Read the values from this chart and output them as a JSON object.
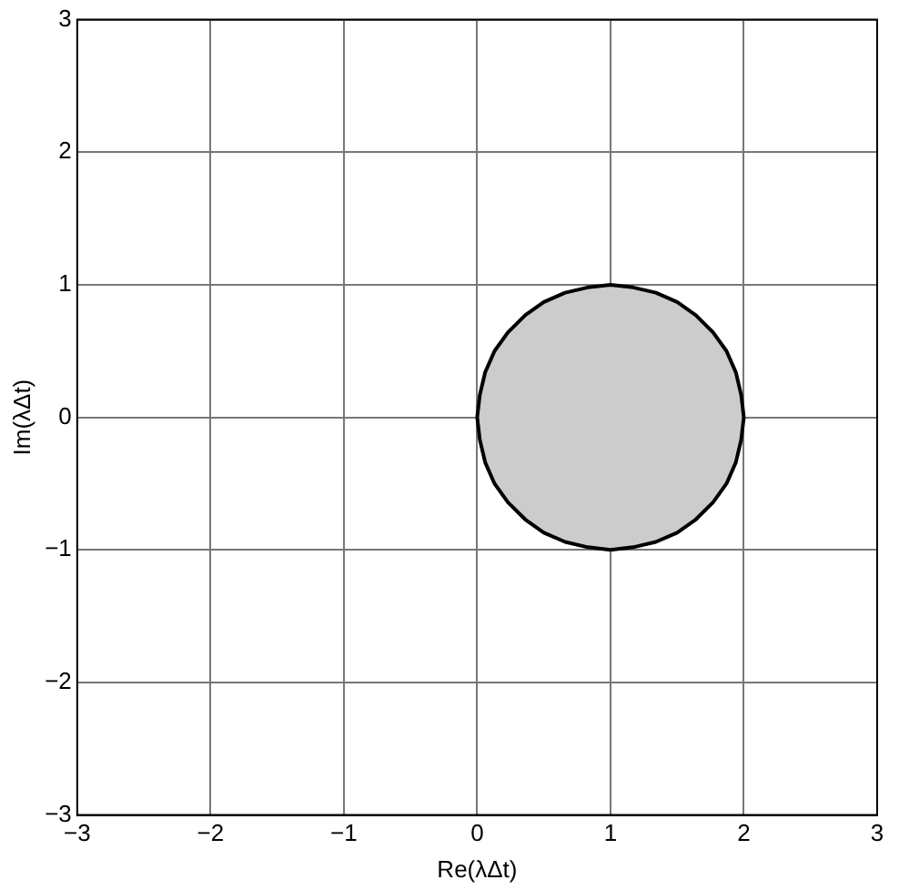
{
  "chart_data": {
    "type": "area",
    "xlabel": "Re(λΔt)",
    "ylabel": "Im(λΔt)",
    "xlim": [
      -3,
      3
    ],
    "ylim": [
      -3,
      3
    ],
    "xticks": [
      {
        "value": -3,
        "label": "−3"
      },
      {
        "value": -2,
        "label": "−2"
      },
      {
        "value": -1,
        "label": "−1"
      },
      0,
      1,
      2,
      3
    ],
    "yticks": [
      {
        "value": -3,
        "label": "−3"
      },
      {
        "value": -2,
        "label": "−2"
      },
      {
        "value": -1,
        "label": "−1"
      },
      0,
      1,
      2,
      3
    ],
    "grid": true,
    "marker": "none",
    "line_style": "solid",
    "series": [
      {
        "color": "#cccccc",
        "x": [
          2,
          1.98,
          1.94,
          1.87,
          1.77,
          1.64,
          1.5,
          1.34,
          1.17,
          1,
          0.83,
          0.66,
          0.5,
          0.36,
          0.23,
          0.13,
          0.06,
          0.02,
          0,
          0.02,
          0.06,
          0.13,
          0.23,
          0.36,
          0.5,
          0.66,
          0.83,
          1,
          1.17,
          1.34,
          1.5,
          1.64,
          1.77,
          1.87,
          1.94,
          1.98,
          2
        ],
        "values": [
          0,
          0.17,
          0.34,
          0.5,
          0.64,
          0.77,
          0.87,
          0.94,
          0.98,
          1,
          0.98,
          0.94,
          0.87,
          0.77,
          0.64,
          0.5,
          0.34,
          0.17,
          0,
          -0.17,
          -0.34,
          -0.5,
          -0.64,
          -0.77,
          -0.87,
          -0.94,
          -0.98,
          -1,
          -0.98,
          -0.94,
          -0.87,
          -0.77,
          -0.64,
          -0.5,
          -0.34,
          -0.17,
          0
        ]
      }
    ]
  }
}
